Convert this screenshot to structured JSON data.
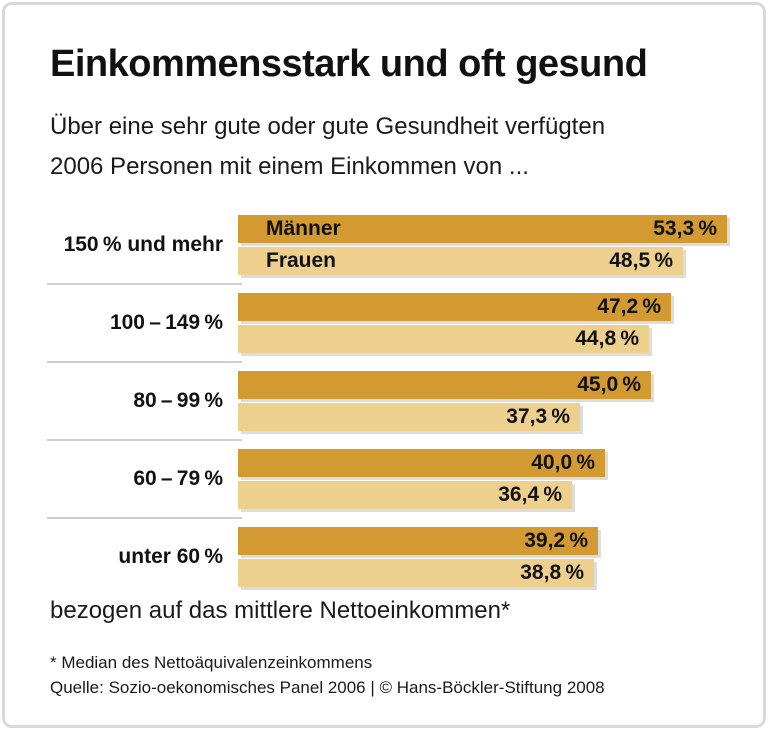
{
  "header": {
    "title": "Einkommensstark und oft gesund",
    "subtitle_lines": [
      "Über eine sehr gute oder gute Gesundheit verfügten",
      "2006 Personen mit einem Einkommen von ..."
    ]
  },
  "chart_data": {
    "type": "bar",
    "orientation": "horizontal",
    "unit": "%",
    "grid": false,
    "legend_position": "in-bar-first-group",
    "xlim": [
      0,
      55.8
    ],
    "categories": [
      "150 % und mehr",
      "100 – 149 %",
      "80 – 99 %",
      "60 – 79 %",
      "unter 60 %"
    ],
    "series": [
      {
        "name": "Männer",
        "color": "#D39A31",
        "values": [
          53.3,
          47.2,
          45.0,
          40.0,
          39.2
        ],
        "labels": [
          "53,3 %",
          "47,2 %",
          "45,0 %",
          "40,0 %",
          "39,2 %"
        ]
      },
      {
        "name": "Frauen",
        "color": "#EDCF8E",
        "values": [
          48.5,
          44.8,
          37.3,
          36.4,
          38.8
        ],
        "labels": [
          "48,5 %",
          "44,8 %",
          "37,3 %",
          "36,4 %",
          "38,8 %"
        ]
      }
    ]
  },
  "footer": {
    "axis_note": "bezogen auf das mittlere Nettoeinkommen*",
    "footnote": "* Median des Nettoäquivalenzeinkommens",
    "source": "Quelle: Sozio-oekonomisches Panel 2006 | © Hans-Böckler-Stiftung 2008"
  }
}
